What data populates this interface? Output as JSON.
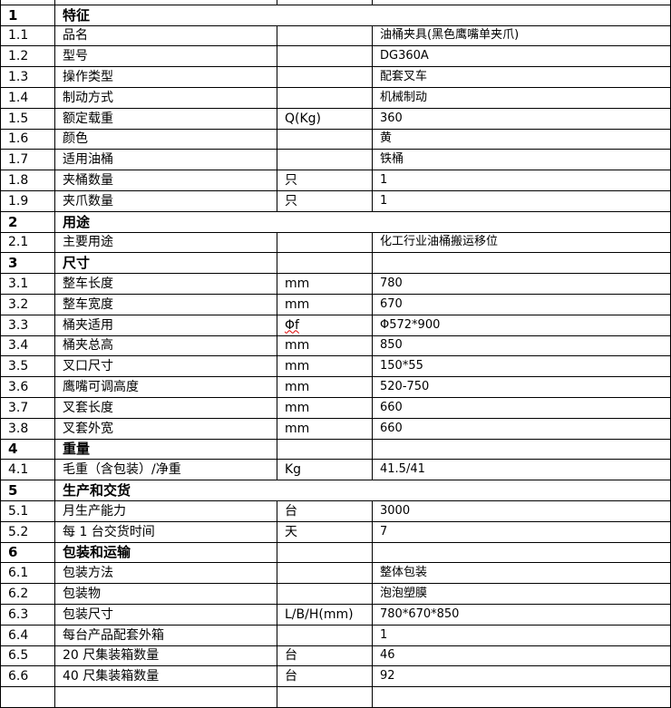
{
  "sections": [
    {
      "no": "1",
      "title": "特征",
      "merged": true,
      "rows": [
        {
          "no": "1.1",
          "name": "品名",
          "unit": "",
          "value": "油桶夹具(黑色鹰嘴单夹爪)"
        },
        {
          "no": "1.2",
          "name": "型号",
          "unit": "",
          "value": "DG360A"
        },
        {
          "no": "1.3",
          "name": "操作类型",
          "unit": "",
          "value": "配套叉车"
        },
        {
          "no": "1.4",
          "name": "制动方式",
          "unit": "",
          "value": "机械制动"
        },
        {
          "no": "1.5",
          "name": "额定载重",
          "unit": "Q(Kg)",
          "value": "360"
        },
        {
          "no": "1.6",
          "name": "颜色",
          "unit": "",
          "value": "黄"
        },
        {
          "no": "1.7",
          "name": "适用油桶",
          "unit": "",
          "value": "铁桶"
        },
        {
          "no": "1.8",
          "name": "夹桶数量",
          "unit": "只",
          "value": "1"
        },
        {
          "no": "1.9",
          "name": "夹爪数量",
          "unit": "只",
          "value": "1"
        }
      ]
    },
    {
      "no": "2",
      "title": "用途",
      "merged": true,
      "rows": [
        {
          "no": "2.1",
          "name": "主要用途",
          "unit": "",
          "value": "化工行业油桶搬运移位"
        }
      ]
    },
    {
      "no": "3",
      "title": "尺寸",
      "merged": false,
      "rows": [
        {
          "no": "3.1",
          "name": "整车长度",
          "unit": "mm",
          "value": "780"
        },
        {
          "no": "3.2",
          "name": "整车宽度",
          "unit": "mm",
          "value": "670"
        },
        {
          "no": "3.3",
          "name": "桶夹适用",
          "unit": "Φf",
          "value": "Φ572*900"
        },
        {
          "no": "3.4",
          "name": "桶夹总高",
          "unit": "mm",
          "value": "850"
        },
        {
          "no": "3.5",
          "name": "叉口尺寸",
          "unit": "mm",
          "value": "150*55"
        },
        {
          "no": "3.6",
          "name": "鹰嘴可调高度",
          "unit": "mm",
          "value": "520-750"
        },
        {
          "no": "3.7",
          "name": "叉套长度",
          "unit": "mm",
          "value": "660"
        },
        {
          "no": "3.8",
          "name": "叉套外宽",
          "unit": "mm",
          "value": "660"
        }
      ]
    },
    {
      "no": "4",
      "title": "重量",
      "merged": false,
      "rows": [
        {
          "no": "4.1",
          "name": "毛重（含包装）/净重",
          "unit": "Kg",
          "value": "41.5/41"
        }
      ]
    },
    {
      "no": "5",
      "title": "生产和交货",
      "merged": true,
      "rows": [
        {
          "no": "5.1",
          "name": "月生产能力",
          "unit": "台",
          "value": "3000"
        },
        {
          "no": "5.2",
          "name": "每 1 台交货时间",
          "unit": "天",
          "value": "7"
        }
      ]
    },
    {
      "no": "6",
      "title": "包装和运输",
      "merged": false,
      "rows": [
        {
          "no": "6.1",
          "name": "包装方法",
          "unit": "",
          "value": "整体包装"
        },
        {
          "no": "6.2",
          "name": "包装物",
          "unit": "",
          "value": "泡泡塑膜"
        },
        {
          "no": "6.3",
          "name": "包装尺寸",
          "unit": "L/B/H(mm)",
          "value": "780*670*850"
        },
        {
          "no": "6.4",
          "name": "每台产品配套外箱",
          "unit": "",
          "value": "1"
        },
        {
          "no": "6.5",
          "name": "20 尺集装箱数量",
          "unit": "台",
          "value": "46"
        },
        {
          "no": "6.6",
          "name": "40 尺集装箱数量",
          "unit": "台",
          "value": "92"
        }
      ]
    }
  ]
}
